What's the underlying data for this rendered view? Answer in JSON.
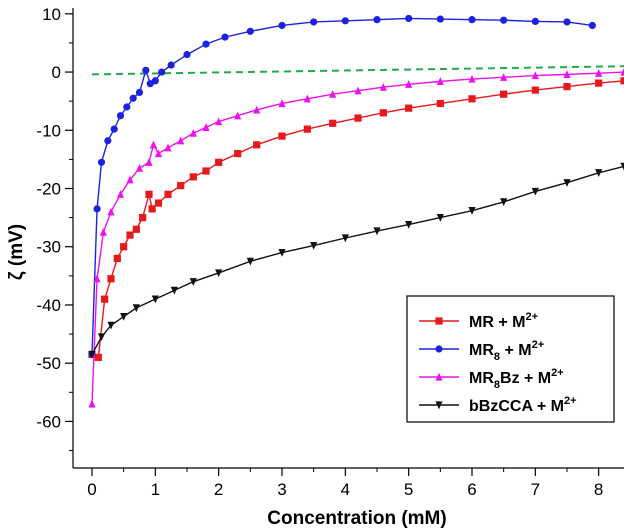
{
  "chart_data": {
    "type": "line",
    "xlabel": "Concentration (mM)",
    "ylabel": "ζ (mV)",
    "xlim": [
      -0.3,
      8.4
    ],
    "ylim": [
      -68,
      11
    ],
    "xticks": [
      0,
      1,
      2,
      3,
      4,
      5,
      6,
      7,
      8
    ],
    "yticks": [
      10,
      0,
      -10,
      -20,
      -30,
      -40,
      -50,
      -60
    ],
    "legend_position": "bottom-right",
    "series": [
      {
        "name": "MR + M",
        "name_sup": "2+",
        "color": "#e8191c",
        "marker": "square",
        "x": [
          0,
          0.1,
          0.2,
          0.3,
          0.4,
          0.5,
          0.6,
          0.7,
          0.8,
          0.9,
          0.95,
          1.05,
          1.2,
          1.4,
          1.6,
          1.8,
          2.0,
          2.3,
          2.6,
          3.0,
          3.4,
          3.8,
          4.2,
          4.6,
          5.0,
          5.5,
          6.0,
          6.5,
          7.0,
          7.5,
          8.0,
          8.4
        ],
        "y": [
          -48.5,
          -49,
          -39,
          -35.5,
          -32,
          -30,
          -28,
          -27,
          -25,
          -21,
          -23.5,
          -22.5,
          -21,
          -19.5,
          -18,
          -17,
          -15.5,
          -14,
          -12.5,
          -11,
          -9.8,
          -8.8,
          -7.9,
          -7,
          -6.2,
          -5.4,
          -4.6,
          -3.8,
          -3.1,
          -2.5,
          -1.9,
          -1.5
        ]
      },
      {
        "name": "MR",
        "name_sub": "8",
        "name_tail": " + M",
        "name_sup": "2+",
        "color": "#1c22e0",
        "marker": "circle",
        "x": [
          0,
          0.08,
          0.15,
          0.25,
          0.35,
          0.45,
          0.55,
          0.65,
          0.75,
          0.85,
          0.92,
          1.0,
          1.1,
          1.25,
          1.5,
          1.8,
          2.1,
          2.5,
          3.0,
          3.5,
          4.0,
          4.5,
          5.0,
          5.5,
          6.0,
          6.5,
          7.0,
          7.5,
          7.9
        ],
        "y": [
          -48.5,
          -23.5,
          -15.5,
          -11.8,
          -9.8,
          -7.5,
          -6,
          -4.5,
          -3.5,
          0.3,
          -2,
          -1.5,
          0,
          1.2,
          3,
          4.8,
          6,
          7,
          8,
          8.6,
          8.8,
          9,
          9.2,
          9.1,
          9,
          8.9,
          8.7,
          8.6,
          8
        ]
      },
      {
        "name": "MR",
        "name_sub": "8",
        "name_tail": "Bz + M",
        "name_sup": "2+",
        "color": "#ee11ee",
        "marker": "triangle-up",
        "x": [
          0,
          0.08,
          0.18,
          0.3,
          0.45,
          0.6,
          0.75,
          0.9,
          0.97,
          1.05,
          1.2,
          1.4,
          1.6,
          1.8,
          2.0,
          2.3,
          2.6,
          3.0,
          3.4,
          3.8,
          4.2,
          4.6,
          5.0,
          5.5,
          6.0,
          6.5,
          7.0,
          7.5,
          8.0,
          8.4
        ],
        "y": [
          -57,
          -35.5,
          -27.5,
          -24,
          -21,
          -18.5,
          -16.5,
          -15.5,
          -12.5,
          -14,
          -13,
          -11.8,
          -10.5,
          -9.5,
          -8.5,
          -7.5,
          -6.5,
          -5.4,
          -4.6,
          -3.8,
          -3.2,
          -2.6,
          -2.1,
          -1.6,
          -1.2,
          -0.9,
          -0.6,
          -0.4,
          -0.2,
          0
        ]
      },
      {
        "name": "bBzCCA + M",
        "name_sup": "2+",
        "color": "#111111",
        "marker": "triangle-down",
        "x": [
          0,
          0.15,
          0.3,
          0.5,
          0.7,
          1.0,
          1.3,
          1.6,
          2.0,
          2.5,
          3.0,
          3.5,
          4.0,
          4.5,
          5.0,
          5.5,
          6.0,
          6.5,
          7.0,
          7.5,
          8.0,
          8.4
        ],
        "y": [
          -48.5,
          -45.5,
          -43.5,
          -42,
          -40.5,
          -39,
          -37.5,
          -36,
          -34.5,
          -32.5,
          -31,
          -29.8,
          -28.5,
          -27.3,
          -26.2,
          -25,
          -23.8,
          -22.3,
          -20.5,
          -19,
          -17.3,
          -16.2
        ]
      }
    ],
    "reference_line": {
      "color": "#22aa44",
      "style": "dashed",
      "x": [
        0,
        8.4
      ],
      "y": [
        -0.4,
        1.0
      ]
    }
  }
}
